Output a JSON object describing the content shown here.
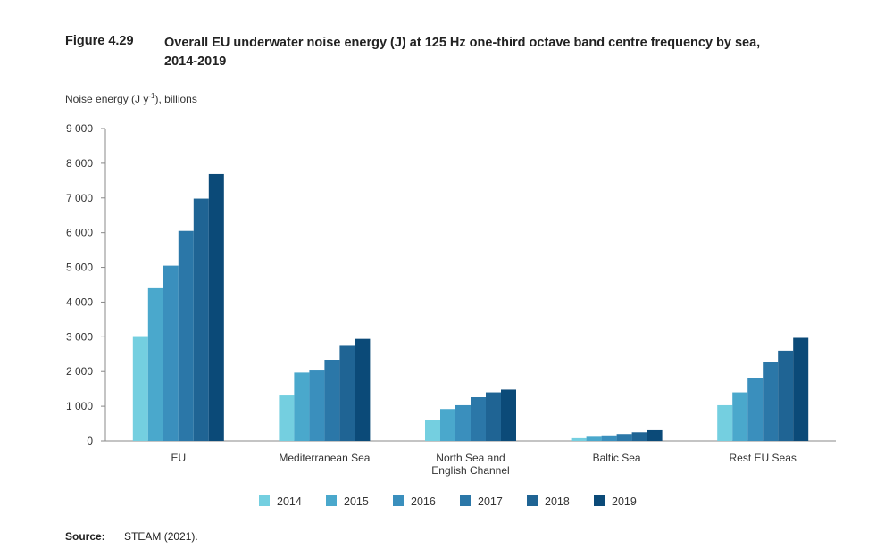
{
  "figure": {
    "number": "Figure 4.29",
    "title_line1": "Overall EU underwater noise energy (J) at 125 Hz one-third octave band centre frequency by sea,",
    "title_line2": "2014-2019",
    "ylabel_main": "Noise energy (J y",
    "ylabel_sup": "-1",
    "ylabel_tail": "), billions"
  },
  "source": {
    "label": "Source:",
    "text": "STEAM (2021)."
  },
  "colors": [
    "#74cfe0",
    "#4aa8cc",
    "#3a8fbd",
    "#2b77a8",
    "#1f6494",
    "#0b4a78"
  ],
  "chart_data": {
    "type": "bar",
    "title": "Overall EU underwater noise energy (J) at 125 Hz one-third octave band centre frequency by sea, 2014-2019",
    "ylabel": "Noise energy (J y-1), billions",
    "xlabel": "",
    "ylim": [
      0,
      9000
    ],
    "yticks": [
      "0",
      "1 000",
      "2 000",
      "3 000",
      "4 000",
      "5 000",
      "6 000",
      "7 000",
      "8 000",
      "9 000"
    ],
    "categories": [
      [
        "EU"
      ],
      [
        "Mediterranean Sea"
      ],
      [
        "North Sea and",
        "English Channel"
      ],
      [
        "Baltic Sea"
      ],
      [
        "Rest EU Seas"
      ]
    ],
    "series": [
      {
        "name": "2014",
        "values": [
          3020,
          1310,
          600,
          80,
          1030
        ]
      },
      {
        "name": "2015",
        "values": [
          4400,
          1970,
          920,
          120,
          1400
        ]
      },
      {
        "name": "2016",
        "values": [
          5050,
          2030,
          1030,
          160,
          1820
        ]
      },
      {
        "name": "2017",
        "values": [
          6050,
          2340,
          1260,
          200,
          2280
        ]
      },
      {
        "name": "2018",
        "values": [
          6980,
          2740,
          1400,
          250,
          2600
        ]
      },
      {
        "name": "2019",
        "values": [
          7690,
          2940,
          1480,
          310,
          2970
        ]
      }
    ],
    "legend_position": "bottom"
  }
}
